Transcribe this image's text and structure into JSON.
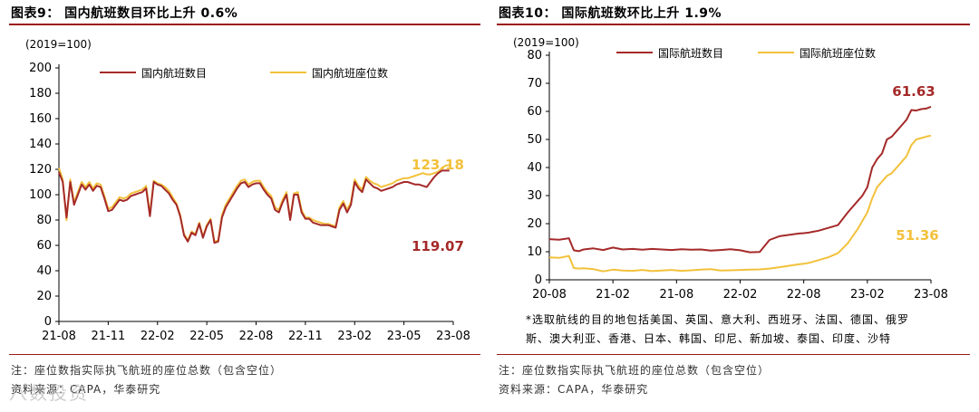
{
  "left": {
    "title": "图表9： 国内航班数目环比上升 0.6%",
    "unit": "(2019=100)",
    "note": "注：座位数指实际执飞航班的座位总数（包含空位）",
    "source": "资料来源：CAPA，华泰研究"
  },
  "right": {
    "title": "图表10： 国际航班数环比上升 1.9%",
    "unit": "(2019=100)",
    "countries_line1": "*选取航线的目的地包括美国、英国、意大利、西班牙、法国、德国、俄罗",
    "countries_line2": "斯、澳大利亚、香港、日本、韩国、印尼、新加坡、泰国、印度、沙特",
    "note": "注：座位数指实际执飞航班的座位总数（包含空位）",
    "source": "资料来源：CAPA，华泰研究"
  },
  "watermark": "八数投资",
  "colors": {
    "dark_red": "#a52a2a",
    "gold": "#f2c13b",
    "title_line": "#9b1c1c"
  },
  "chart_data": [
    {
      "type": "line",
      "title": "图表9： 国内航班数目环比上升 0.6%",
      "ylabel": "(2019=100)",
      "ylim": [
        0,
        200
      ],
      "yticks": [
        "0",
        "20",
        "40",
        "60",
        "80",
        "100",
        "120",
        "140",
        "160",
        "180",
        "200"
      ],
      "xticks": [
        "21-08",
        "21-11",
        "22-02",
        "22-05",
        "22-08",
        "22-11",
        "23-02",
        "23-05",
        "23-08"
      ],
      "xdomain": [
        0,
        104
      ],
      "legend": "top",
      "annotations": [
        {
          "text": "123.18",
          "series": 1
        },
        {
          "text": "119.07",
          "series": 0
        }
      ],
      "series": [
        {
          "name": "国内航班数目",
          "color": "#a52a2a",
          "x": [
            0,
            1,
            2,
            3,
            4,
            5,
            6,
            7,
            8,
            9,
            10,
            11,
            12,
            13,
            14,
            15,
            16,
            17,
            18,
            19,
            20,
            21,
            22,
            23,
            24,
            25,
            26,
            27,
            28,
            29,
            30,
            31,
            32,
            33,
            34,
            35,
            36,
            37,
            38,
            39,
            40,
            41,
            42,
            43,
            44,
            45,
            46,
            47,
            48,
            49,
            50,
            51,
            52,
            53,
            54,
            55,
            56,
            57,
            58,
            59,
            60,
            61,
            62,
            63,
            64,
            65,
            66,
            67,
            68,
            69,
            70,
            71,
            72,
            73,
            74,
            75,
            76,
            77,
            78,
            79,
            80,
            81,
            82,
            83,
            84,
            85,
            86,
            87,
            88,
            89,
            90,
            91,
            92,
            93,
            94,
            95,
            96,
            97,
            98,
            99,
            100,
            101,
            102,
            103
          ],
          "y": [
            118,
            110,
            82,
            110,
            92,
            100,
            108,
            104,
            108,
            103,
            107,
            106,
            97,
            87,
            88,
            92,
            96,
            95,
            96,
            99,
            100,
            101,
            102,
            105,
            83,
            110,
            108,
            107,
            104,
            101,
            96,
            92,
            83,
            68,
            63,
            70,
            68,
            77,
            66,
            75,
            80,
            62,
            63,
            82,
            90,
            95,
            100,
            105,
            109,
            110,
            106,
            108,
            109,
            109,
            104,
            100,
            97,
            88,
            86,
            94,
            100,
            80,
            100,
            100,
            86,
            81,
            81,
            78,
            77,
            76,
            76,
            76,
            75,
            74,
            88,
            93,
            86,
            92,
            110,
            105,
            102,
            112,
            109,
            106,
            105,
            103,
            104,
            105,
            106,
            108,
            109,
            110,
            110,
            109,
            108,
            108,
            107,
            106,
            110,
            114,
            117,
            119,
            119,
            119
          ]
        },
        {
          "name": "国内航班座位数",
          "color": "#f2c13b",
          "x": [
            0,
            1,
            2,
            3,
            4,
            5,
            6,
            7,
            8,
            9,
            10,
            11,
            12,
            13,
            14,
            15,
            16,
            17,
            18,
            19,
            20,
            21,
            22,
            23,
            24,
            25,
            26,
            27,
            28,
            29,
            30,
            31,
            32,
            33,
            34,
            35,
            36,
            37,
            38,
            39,
            40,
            41,
            42,
            43,
            44,
            45,
            46,
            47,
            48,
            49,
            50,
            51,
            52,
            53,
            54,
            55,
            56,
            57,
            58,
            59,
            60,
            61,
            62,
            63,
            64,
            65,
            66,
            67,
            68,
            69,
            70,
            71,
            72,
            73,
            74,
            75,
            76,
            77,
            78,
            79,
            80,
            81,
            82,
            83,
            84,
            85,
            86,
            87,
            88,
            89,
            90,
            91,
            92,
            93,
            94,
            95,
            96,
            97,
            98,
            99,
            100,
            101,
            102,
            103
          ],
          "y": [
            121,
            112,
            80,
            112,
            94,
            102,
            110,
            106,
            110,
            105,
            109,
            108,
            99,
            89,
            90,
            94,
            98,
            97,
            98,
            101,
            102,
            103,
            104,
            107,
            85,
            111,
            109,
            108,
            106,
            103,
            98,
            93,
            84,
            69,
            64,
            71,
            69,
            78,
            67,
            76,
            81,
            63,
            64,
            84,
            92,
            97,
            102,
            107,
            111,
            112,
            108,
            110,
            111,
            111,
            106,
            102,
            99,
            90,
            88,
            96,
            102,
            81,
            101,
            102,
            88,
            82,
            82,
            80,
            79,
            78,
            77,
            77,
            76,
            75,
            90,
            95,
            88,
            94,
            112,
            107,
            104,
            114,
            111,
            109,
            108,
            106,
            107,
            108,
            109,
            111,
            112,
            113,
            113,
            114,
            115,
            116,
            117,
            116,
            116,
            117,
            118,
            121,
            123,
            123.18
          ]
        }
      ]
    },
    {
      "type": "line",
      "title": "图表10： 国际航班数环比上升 1.9%",
      "ylabel": "(2019=100)",
      "ylim": [
        0,
        80
      ],
      "yticks": [
        "0",
        "10",
        "20",
        "30",
        "40",
        "50",
        "60",
        "70",
        "80"
      ],
      "xticks": [
        "20-08",
        "21-02",
        "21-08",
        "22-02",
        "22-08",
        "23-02",
        "23-08"
      ],
      "xdomain": [
        0,
        156
      ],
      "legend": "top",
      "annotations": [
        {
          "text": "61.63",
          "series": 0
        },
        {
          "text": "51.36",
          "series": 1
        }
      ],
      "series": [
        {
          "name": "国际航班数目",
          "color": "#a52a2a",
          "x": [
            0,
            4,
            8,
            10,
            12,
            14,
            18,
            22,
            26,
            30,
            34,
            38,
            42,
            46,
            50,
            54,
            58,
            62,
            66,
            70,
            74,
            78,
            82,
            86,
            90,
            94,
            98,
            102,
            104,
            106,
            110,
            114,
            118,
            122,
            126,
            128,
            130,
            132,
            134,
            136,
            138,
            140,
            142,
            144,
            146,
            148,
            150,
            152,
            154,
            156
          ],
          "y": [
            14.5,
            14.3,
            14.8,
            10.5,
            10.2,
            10.8,
            11.2,
            10.6,
            11.5,
            10.8,
            11.0,
            10.7,
            11.0,
            10.8,
            10.6,
            10.9,
            10.7,
            10.8,
            10.4,
            10.6,
            10.9,
            10.5,
            9.8,
            9.9,
            14.2,
            15.5,
            16.0,
            16.5,
            16.6,
            16.8,
            17.5,
            18.5,
            19.5,
            24.0,
            28.0,
            30.0,
            33.0,
            40.0,
            43.0,
            45.0,
            50.0,
            51.0,
            53.0,
            55.0,
            57.0,
            60.5,
            60.3,
            60.8,
            61.0,
            61.63
          ]
        },
        {
          "name": "国际航班座位数",
          "color": "#f2c13b",
          "x": [
            0,
            4,
            8,
            10,
            12,
            14,
            18,
            22,
            26,
            30,
            34,
            38,
            42,
            46,
            50,
            54,
            58,
            62,
            66,
            70,
            74,
            78,
            82,
            86,
            90,
            94,
            98,
            102,
            104,
            106,
            110,
            114,
            118,
            122,
            126,
            128,
            130,
            132,
            134,
            136,
            138,
            140,
            142,
            144,
            146,
            148,
            150,
            152,
            154,
            156
          ],
          "y": [
            8.0,
            7.8,
            8.5,
            4.2,
            4.0,
            4.1,
            3.8,
            3.0,
            3.6,
            3.3,
            3.2,
            3.5,
            3.1,
            3.3,
            3.5,
            3.2,
            3.4,
            3.6,
            3.8,
            3.3,
            3.4,
            3.5,
            3.6,
            3.7,
            4.0,
            4.5,
            5.0,
            5.5,
            5.7,
            6.0,
            7.0,
            8.0,
            9.5,
            13.0,
            18.0,
            21.0,
            24.0,
            29.0,
            33.0,
            35.0,
            37.0,
            38.0,
            40.0,
            42.0,
            44.0,
            48.0,
            50.0,
            50.5,
            51.0,
            51.36
          ]
        }
      ]
    }
  ]
}
